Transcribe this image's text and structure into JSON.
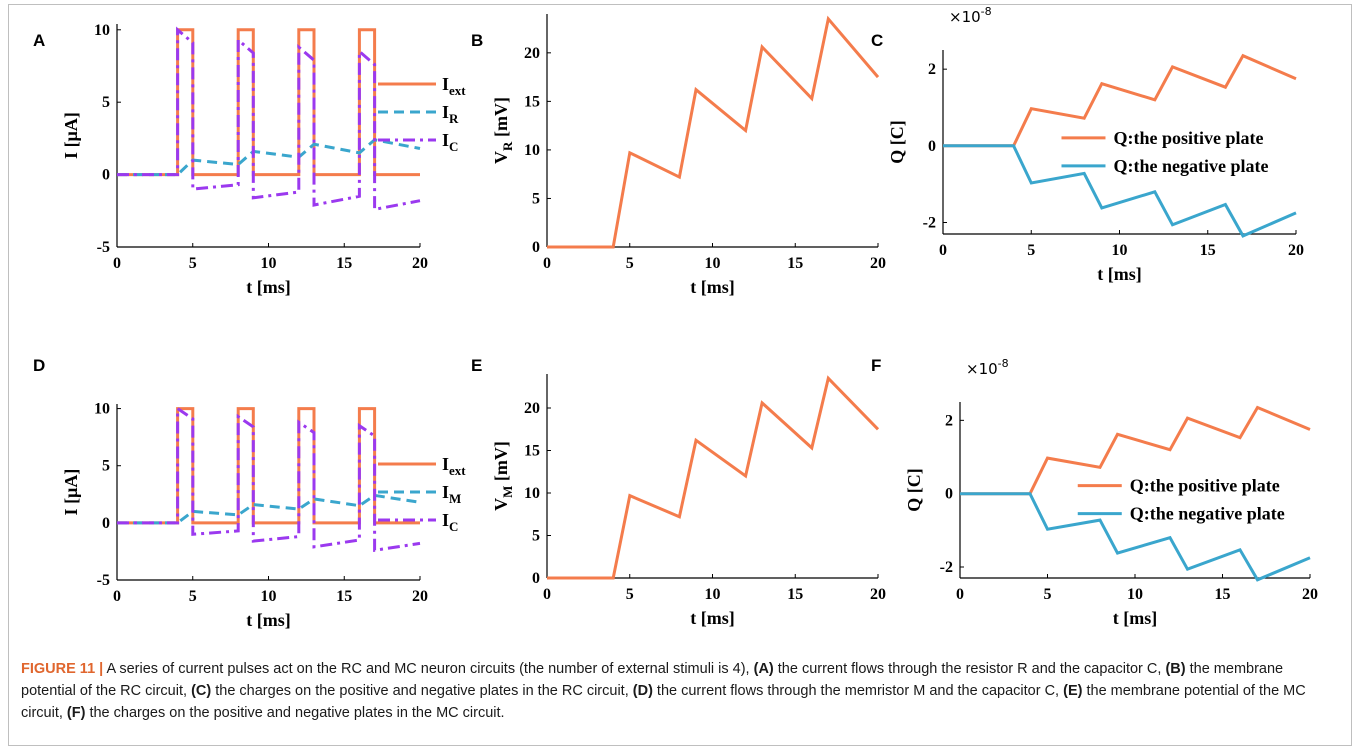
{
  "figure": {
    "caption_label": "FIGURE 11 |",
    "caption_parts": [
      {
        "t": "A series of current pulses act on the RC and MC neuron circuits (the number of external stimuli is 4), ",
        "b": false
      },
      {
        "t": "(A)",
        "b": true
      },
      {
        "t": " the current flows through the resistor R and the capacitor C, ",
        "b": false
      },
      {
        "t": "(B)",
        "b": true
      },
      {
        "t": " the membrane potential of the RC circuit, ",
        "b": false
      },
      {
        "t": "(C)",
        "b": true
      },
      {
        "t": " the charges on the positive and negative plates in the RC circuit, ",
        "b": false
      },
      {
        "t": "(D)",
        "b": true
      },
      {
        "t": " the current flows through the memristor M and the capacitor C, ",
        "b": false
      },
      {
        "t": "(E)",
        "b": true
      },
      {
        "t": " the membrane potential of the MC circuit, ",
        "b": false
      },
      {
        "t": "(F)",
        "b": true
      },
      {
        "t": " the charges on the positive and negative plates in the MC circuit.",
        "b": false
      }
    ]
  },
  "colors": {
    "orange": "#f47c4c",
    "blue": "#3aa6cd",
    "purple": "#9b39ef"
  },
  "chart_data": [
    {
      "panel": "A",
      "type": "line",
      "xlabel": "t [ms]",
      "ylabel": "I [µA]",
      "xlim": [
        0,
        20
      ],
      "ylim": [
        -5,
        10.4
      ],
      "xticks": [
        "0",
        "5",
        "10",
        "15",
        "20"
      ],
      "yticks": [
        "-5",
        "0",
        "5",
        "10"
      ],
      "legend_position": "outside-right",
      "series": [
        {
          "name": "Iext",
          "color": "orange",
          "style": "solid",
          "x": [
            0,
            4,
            4,
            5,
            5,
            8,
            8,
            9,
            9,
            12,
            12,
            13,
            13,
            16,
            16,
            17,
            17,
            20
          ],
          "y": [
            0,
            0,
            10,
            10,
            0,
            0,
            10,
            10,
            0,
            0,
            10,
            10,
            0,
            0,
            10,
            10,
            0,
            0
          ]
        },
        {
          "name": "IR",
          "color": "blue",
          "style": "dashed",
          "x": [
            0,
            4,
            5,
            8,
            9,
            12,
            13,
            16,
            17,
            20
          ],
          "y": [
            0,
            0,
            1.0,
            0.7,
            1.6,
            1.2,
            2.1,
            1.5,
            2.4,
            1.8
          ]
        },
        {
          "name": "IC",
          "color": "purple",
          "style": "dashdot",
          "x": [
            0,
            4,
            4,
            5,
            5,
            8,
            8,
            9,
            9,
            12,
            12,
            13,
            13,
            16,
            16,
            17,
            17,
            20
          ],
          "y": [
            0,
            0,
            10,
            9.1,
            -1.0,
            -0.7,
            9.3,
            8.4,
            -1.6,
            -1.2,
            8.8,
            7.9,
            -2.1,
            -1.5,
            8.5,
            7.6,
            -2.4,
            -1.8
          ]
        }
      ]
    },
    {
      "panel": "B",
      "type": "line",
      "xlabel": "t [ms]",
      "ylabel": "VR [mV]",
      "xlim": [
        0,
        20
      ],
      "ylim": [
        0,
        24
      ],
      "xticks": [
        "0",
        "5",
        "10",
        "15",
        "20"
      ],
      "yticks": [
        "0",
        "5",
        "10",
        "15",
        "20"
      ],
      "series": [
        {
          "name": "",
          "color": "orange",
          "style": "solid",
          "x": [
            0,
            4,
            5,
            8,
            9,
            12,
            13,
            16,
            17,
            20
          ],
          "y": [
            0,
            0,
            9.7,
            7.2,
            16.2,
            12.0,
            20.6,
            15.3,
            23.5,
            17.5
          ]
        }
      ]
    },
    {
      "panel": "C",
      "type": "line",
      "xlabel": "t [ms]",
      "ylabel": "Q [C]",
      "exponent_label": "×10",
      "exponent_power": "-8",
      "xlim": [
        0,
        20
      ],
      "ylim": [
        -2.3,
        2.5
      ],
      "xticks": [
        "0",
        "5",
        "10",
        "15",
        "20"
      ],
      "yticks": [
        "-2",
        "0",
        "2"
      ],
      "legend_position": "inside-right",
      "series": [
        {
          "name": "Q:the positive plate",
          "color": "orange",
          "style": "solid",
          "x": [
            0,
            4,
            5,
            8,
            9,
            12,
            13,
            16,
            17,
            20
          ],
          "y": [
            0,
            0,
            0.97,
            0.72,
            1.62,
            1.2,
            2.06,
            1.53,
            2.35,
            1.75
          ]
        },
        {
          "name": "Q:the negative plate",
          "color": "blue",
          "style": "solid",
          "x": [
            0,
            4,
            5,
            8,
            9,
            12,
            13,
            16,
            17,
            20
          ],
          "y": [
            0,
            0,
            -0.97,
            -0.72,
            -1.62,
            -1.2,
            -2.06,
            -1.53,
            -2.35,
            -1.75
          ]
        }
      ]
    },
    {
      "panel": "D",
      "type": "line",
      "xlabel": "t [ms]",
      "ylabel": "I [µA]",
      "xlim": [
        0,
        20
      ],
      "ylim": [
        -5,
        10.4
      ],
      "xticks": [
        "0",
        "5",
        "10",
        "15",
        "20"
      ],
      "yticks": [
        "-5",
        "0",
        "5",
        "10"
      ],
      "legend_position": "outside-right",
      "series": [
        {
          "name": "Iext",
          "color": "orange",
          "style": "solid",
          "x": [
            0,
            4,
            4,
            5,
            5,
            8,
            8,
            9,
            9,
            12,
            12,
            13,
            13,
            16,
            16,
            17,
            17,
            20
          ],
          "y": [
            0,
            0,
            10,
            10,
            0,
            0,
            10,
            10,
            0,
            0,
            10,
            10,
            0,
            0,
            10,
            10,
            0,
            0
          ]
        },
        {
          "name": "IM",
          "color": "blue",
          "style": "dashed",
          "x": [
            0,
            4,
            5,
            8,
            9,
            12,
            13,
            16,
            17,
            20
          ],
          "y": [
            0,
            0,
            1.0,
            0.7,
            1.6,
            1.2,
            2.1,
            1.5,
            2.4,
            1.8
          ]
        },
        {
          "name": "IC",
          "color": "purple",
          "style": "dashdot",
          "x": [
            0,
            4,
            4,
            5,
            5,
            8,
            8,
            9,
            9,
            12,
            12,
            13,
            13,
            16,
            16,
            17,
            17,
            20
          ],
          "y": [
            0,
            0,
            10,
            9.1,
            -1.0,
            -0.7,
            9.3,
            8.4,
            -1.6,
            -1.2,
            8.8,
            7.9,
            -2.1,
            -1.5,
            8.5,
            7.6,
            -2.4,
            -1.8
          ]
        }
      ]
    },
    {
      "panel": "E",
      "type": "line",
      "xlabel": "t [ms]",
      "ylabel": "VM [mV]",
      "xlim": [
        0,
        20
      ],
      "ylim": [
        0,
        24
      ],
      "xticks": [
        "0",
        "5",
        "10",
        "15",
        "20"
      ],
      "yticks": [
        "0",
        "5",
        "10",
        "15",
        "20"
      ],
      "series": [
        {
          "name": "",
          "color": "orange",
          "style": "solid",
          "x": [
            0,
            4,
            5,
            8,
            9,
            12,
            13,
            16,
            17,
            20
          ],
          "y": [
            0,
            0,
            9.7,
            7.2,
            16.2,
            12.0,
            20.6,
            15.3,
            23.5,
            17.5
          ]
        }
      ]
    },
    {
      "panel": "F",
      "type": "line",
      "xlabel": "t [ms]",
      "ylabel": "Q [C]",
      "exponent_label": "×10",
      "exponent_power": "-8",
      "xlim": [
        0,
        20
      ],
      "ylim": [
        -2.3,
        2.5
      ],
      "xticks": [
        "0",
        "5",
        "10",
        "15",
        "20"
      ],
      "yticks": [
        "-2",
        "0",
        "2"
      ],
      "legend_position": "inside-right",
      "series": [
        {
          "name": "Q:the positive plate",
          "color": "orange",
          "style": "solid",
          "x": [
            0,
            4,
            5,
            8,
            9,
            12,
            13,
            16,
            17,
            20
          ],
          "y": [
            0,
            0,
            0.97,
            0.72,
            1.62,
            1.2,
            2.06,
            1.53,
            2.35,
            1.75
          ]
        },
        {
          "name": "Q:the negative plate",
          "color": "blue",
          "style": "solid",
          "x": [
            0,
            4,
            5,
            8,
            9,
            12,
            13,
            16,
            17,
            20
          ],
          "y": [
            0,
            0,
            -0.97,
            -0.72,
            -1.62,
            -1.2,
            -2.06,
            -1.53,
            -2.35,
            -1.75
          ]
        }
      ]
    }
  ]
}
